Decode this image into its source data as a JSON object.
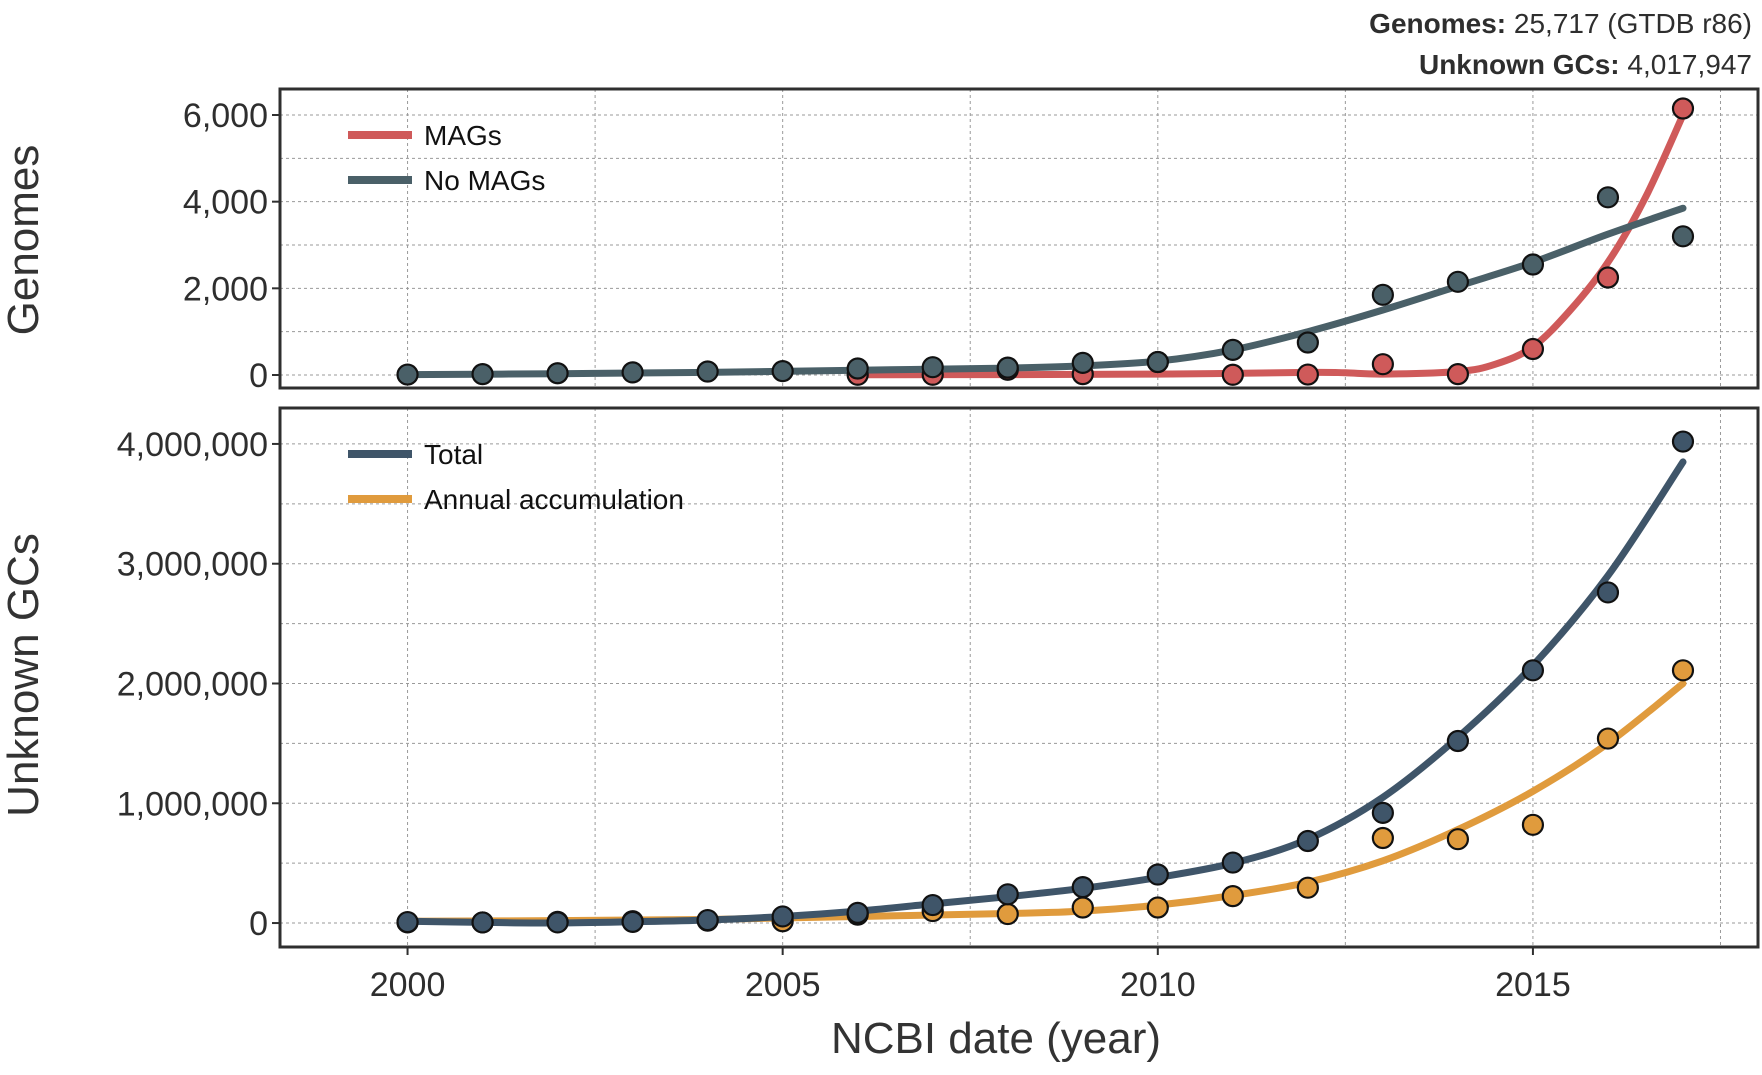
{
  "header": {
    "genomes_label": "Genomes:",
    "genomes_value": "25,717 (GTDB r86)",
    "unknown_label": "Unknown GCs:",
    "unknown_value": "4,017,947"
  },
  "chart_data": [
    {
      "type": "scatter",
      "title": "",
      "xlabel": "NCBI date (year)",
      "ylabel": "Genomes",
      "xlim": [
        1998.3,
        2018.0
      ],
      "ylim": [
        -300,
        6600
      ],
      "yticks": [
        0,
        2000,
        4000,
        6000
      ],
      "ytick_labels": [
        "0",
        "2,000",
        "4,000",
        "6,000"
      ],
      "grid": true,
      "legend_position": "top-left",
      "series": [
        {
          "name": "MAGs",
          "color": "#cf5a5a",
          "x": [
            2006,
            2007,
            2008,
            2009,
            2010,
            2011,
            2012,
            2013,
            2014,
            2015,
            2016,
            2017
          ],
          "points": [
            5,
            5,
            120,
            20,
            300,
            5,
            10,
            250,
            20,
            600,
            2250,
            6150
          ],
          "fit": [
            [
              2006,
              5
            ],
            [
              2008,
              10
            ],
            [
              2010,
              20
            ],
            [
              2012,
              60
            ],
            [
              2012.5,
              50
            ],
            [
              2013,
              20
            ],
            [
              2014,
              80
            ],
            [
              2014.5,
              250
            ],
            [
              2015,
              650
            ],
            [
              2015.5,
              1500
            ],
            [
              2016,
              2600
            ],
            [
              2016.5,
              4100
            ],
            [
              2017,
              6000
            ]
          ]
        },
        {
          "name": "No MAGs",
          "color": "#4a6068",
          "x": [
            2000,
            2001,
            2002,
            2003,
            2004,
            2005,
            2006,
            2007,
            2008,
            2009,
            2010,
            2011,
            2012,
            2013,
            2014,
            2015,
            2016,
            2017
          ],
          "points": [
            10,
            20,
            40,
            60,
            80,
            90,
            150,
            180,
            170,
            280,
            300,
            580,
            750,
            1850,
            2150,
            2550,
            4100,
            3200
          ],
          "fit": [
            [
              2000,
              10
            ],
            [
              2002,
              30
            ],
            [
              2004,
              60
            ],
            [
              2006,
              110
            ],
            [
              2008,
              160
            ],
            [
              2009,
              210
            ],
            [
              2010,
              320
            ],
            [
              2011,
              580
            ],
            [
              2012,
              1000
            ],
            [
              2013,
              1500
            ],
            [
              2014,
              2050
            ],
            [
              2015,
              2600
            ],
            [
              2016,
              3250
            ],
            [
              2017,
              3850
            ]
          ]
        }
      ]
    },
    {
      "type": "scatter",
      "title": "",
      "xlabel": "NCBI date (year)",
      "ylabel": "Unknown GCs",
      "xlim": [
        1998.3,
        2018.0
      ],
      "ylim": [
        -200000,
        4300000
      ],
      "yticks": [
        0,
        1000000,
        2000000,
        3000000,
        4000000
      ],
      "ytick_labels": [
        "0",
        "1,000,000",
        "2,000,000",
        "3,000,000",
        "4,000,000"
      ],
      "xticks": [
        2000,
        2005,
        2010,
        2015
      ],
      "xtick_labels": [
        "2000",
        "2005",
        "2010",
        "2015"
      ],
      "grid": true,
      "legend_position": "top-left",
      "series": [
        {
          "name": "Annual accumulation",
          "color": "#e09b3d",
          "x": [
            2000,
            2001,
            2002,
            2003,
            2004,
            2005,
            2006,
            2007,
            2008,
            2009,
            2010,
            2011,
            2012,
            2013,
            2014,
            2015,
            2016,
            2017
          ],
          "points": [
            5000,
            5000,
            10000,
            15000,
            20000,
            15000,
            70000,
            100000,
            75000,
            130000,
            130000,
            225000,
            295000,
            710000,
            700000,
            820000,
            1540000,
            2110000
          ],
          "fit": [
            [
              2000,
              15000
            ],
            [
              2002,
              20000
            ],
            [
              2004,
              30000
            ],
            [
              2006,
              55000
            ],
            [
              2008,
              80000
            ],
            [
              2009,
              100000
            ],
            [
              2010,
              150000
            ],
            [
              2011,
              230000
            ],
            [
              2012,
              340000
            ],
            [
              2013,
              520000
            ],
            [
              2014,
              780000
            ],
            [
              2015,
              1100000
            ],
            [
              2016,
              1500000
            ],
            [
              2017,
              2000000
            ]
          ]
        },
        {
          "name": "Total",
          "color": "#3f5569",
          "x": [
            2000,
            2001,
            2002,
            2003,
            2004,
            2005,
            2006,
            2007,
            2008,
            2009,
            2010,
            2011,
            2012,
            2013,
            2014,
            2015,
            2016,
            2017
          ],
          "points": [
            8000,
            5000,
            5000,
            10000,
            25000,
            55000,
            85000,
            150000,
            240000,
            300000,
            405000,
            505000,
            685000,
            920000,
            1520000,
            2110000,
            2760000,
            4020000
          ],
          "fit": [
            [
              2000,
              15000
            ],
            [
              2001,
              5000
            ],
            [
              2002,
              0
            ],
            [
              2003,
              10000
            ],
            [
              2004,
              25000
            ],
            [
              2005,
              55000
            ],
            [
              2006,
              100000
            ],
            [
              2007,
              160000
            ],
            [
              2008,
              220000
            ],
            [
              2009,
              290000
            ],
            [
              2010,
              380000
            ],
            [
              2011,
              500000
            ],
            [
              2012,
              700000
            ],
            [
              2013,
              1050000
            ],
            [
              2014,
              1550000
            ],
            [
              2015,
              2150000
            ],
            [
              2016,
              2900000
            ],
            [
              2017,
              3850000
            ]
          ]
        }
      ]
    }
  ]
}
